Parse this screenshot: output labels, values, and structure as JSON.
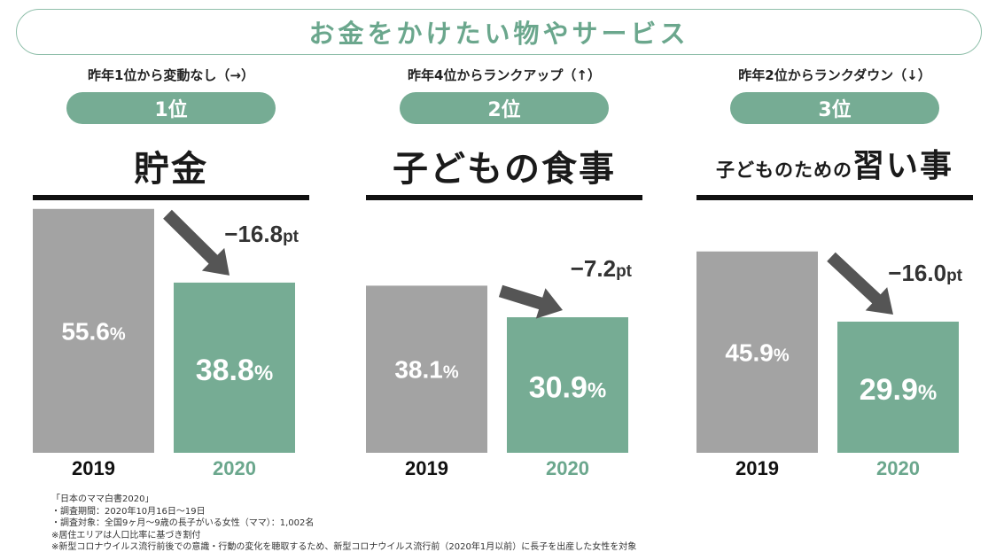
{
  "title": "お金をかけたい物やサービス",
  "colors": {
    "gray": "#a3a3a3",
    "green": "#76ac94",
    "green_text": "#6ba78d",
    "arrow": "#555555"
  },
  "panels": [
    {
      "subtitle": "昨年1位から変動なし（→）",
      "rank": "1位",
      "name_small": "",
      "name_large": "貯金",
      "delta": "−16.8pt"
    },
    {
      "subtitle": "昨年4位からランクアップ（↑）",
      "rank": "2位",
      "name_small": "",
      "name_large": "子どもの食事",
      "delta": "−7.2pt"
    },
    {
      "subtitle": "昨年2位からランクダウン（↓）",
      "rank": "3位",
      "name_small": "子どものための",
      "name_large": "習い事",
      "delta": "−16.0pt"
    }
  ],
  "chart_data": [
    {
      "type": "bar",
      "title": "貯金",
      "categories": [
        "2019",
        "2020"
      ],
      "values": [
        55.6,
        38.8
      ],
      "unit": "%",
      "annotation": "−16.8pt"
    },
    {
      "type": "bar",
      "title": "子どもの食事",
      "categories": [
        "2019",
        "2020"
      ],
      "values": [
        38.1,
        30.9
      ],
      "unit": "%",
      "annotation": "−7.2pt"
    },
    {
      "type": "bar",
      "title": "子どものための習い事",
      "categories": [
        "2019",
        "2020"
      ],
      "values": [
        45.9,
        29.9
      ],
      "unit": "%",
      "annotation": "−16.0pt"
    }
  ],
  "notes": [
    "「日本のママ白書2020」",
    "・調査期間：2020年10月16日～19日",
    "・調査対象：全国9ヶ月～9歳の長子がいる女性（ママ）：1,002名",
    "※居住エリアは人口比率に基づき割付",
    "※新型コロナウイルス流行前後での意識・行動の変化を聴取するため、新型コロナウイルス流行前（2020年1月以前）に長子を出産した女性を対象"
  ]
}
